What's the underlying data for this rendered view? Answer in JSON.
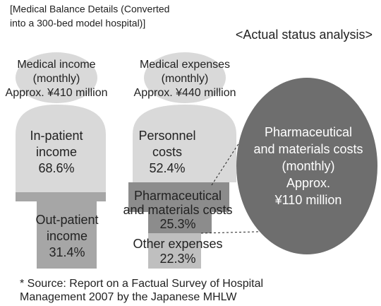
{
  "header": {
    "title": [
      "[Medical Balance Details (Converted",
      "into a 300-bed model hospital)]"
    ],
    "subtitle": "<Actual status analysis>"
  },
  "income": {
    "head": [
      "Medical income",
      "(monthly)",
      "Approx. ¥410 million"
    ],
    "inpatient": [
      "In-patient",
      "income",
      "68.6%"
    ],
    "outpatient": [
      "Out-patient",
      "income",
      "31.4%"
    ]
  },
  "expenses": {
    "head": [
      "Medical expenses",
      "(monthly)",
      "Approx. ¥440 million"
    ],
    "personnel": [
      "Personnel",
      "costs",
      "52.4%"
    ],
    "pharma": [
      "Pharmaceutical",
      "and materials costs",
      "25.3%"
    ],
    "other": [
      "Other expenses",
      "22.3%"
    ]
  },
  "callout": [
    "Pharmaceutical",
    "and materials costs",
    "(monthly)",
    "Approx.",
    "¥110 million"
  ],
  "footnote": [
    "* Source: Report on a Factual Survey of Hospital",
    "Management 2007 by the Japanese MHLW"
  ]
}
